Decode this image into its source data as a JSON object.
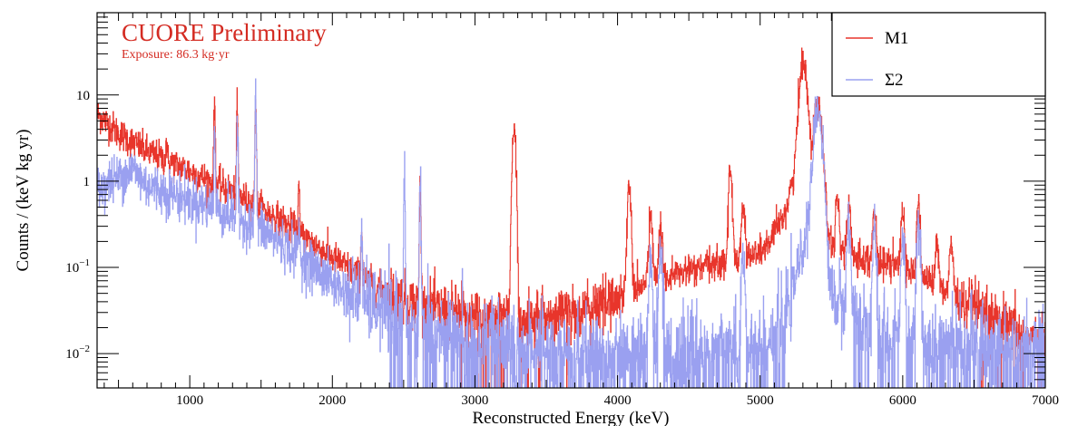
{
  "chart_data": {
    "type": "line",
    "title": "CUORE Preliminary",
    "subtitle": "Exposure: 86.3 kg·yr",
    "xlabel": "Reconstructed Energy (keV)",
    "ylabel": "Counts / (keV kg yr)",
    "xlim": [
      350,
      7000
    ],
    "ylim": [
      0.004,
      90
    ],
    "yscale": "log",
    "grid": false,
    "legend_position": "top-right",
    "x_ticks": [
      {
        "value": 1000,
        "label": "1000"
      },
      {
        "value": 2000,
        "label": "2000"
      },
      {
        "value": 3000,
        "label": "3000"
      },
      {
        "value": 4000,
        "label": "4000"
      },
      {
        "value": 5000,
        "label": "5000"
      },
      {
        "value": 6000,
        "label": "6000"
      },
      {
        "value": 7000,
        "label": "7000"
      }
    ],
    "y_ticks": [
      {
        "value": 0.01,
        "base": "10",
        "exp": "−2"
      },
      {
        "value": 0.1,
        "base": "10",
        "exp": "−1"
      },
      {
        "value": 1,
        "base": "1",
        "exp": ""
      },
      {
        "value": 10,
        "base": "10",
        "exp": ""
      }
    ],
    "series": [
      {
        "name": "M1",
        "color": "#e8352b",
        "continuum": [
          [
            350,
            6
          ],
          [
            500,
            3.6
          ],
          [
            700,
            2.2
          ],
          [
            1000,
            1.3
          ],
          [
            1300,
            0.75
          ],
          [
            1500,
            0.48
          ],
          [
            1700,
            0.3
          ],
          [
            2000,
            0.13
          ],
          [
            2300,
            0.06
          ],
          [
            2600,
            0.036
          ],
          [
            3000,
            0.028
          ],
          [
            3400,
            0.026
          ],
          [
            3800,
            0.032
          ],
          [
            4000,
            0.045
          ],
          [
            4300,
            0.075
          ],
          [
            4600,
            0.1
          ],
          [
            4800,
            0.12
          ],
          [
            5000,
            0.14
          ],
          [
            5200,
            0.2
          ],
          [
            5300,
            0.45
          ],
          [
            5400,
            0.5
          ],
          [
            5500,
            0.2
          ],
          [
            5600,
            0.15
          ],
          [
            5800,
            0.12
          ],
          [
            6000,
            0.1
          ],
          [
            6200,
            0.07
          ],
          [
            6400,
            0.04
          ],
          [
            6600,
            0.025
          ],
          [
            6800,
            0.018
          ],
          [
            7000,
            0.012
          ]
        ],
        "peaks": [
          [
            835,
            1.3
          ],
          [
            1173,
            7
          ],
          [
            1332,
            6
          ],
          [
            1461,
            8
          ],
          [
            1764,
            0.6
          ],
          [
            2204,
            0.2
          ],
          [
            2615,
            0.9
          ],
          [
            3273,
            4.2
          ],
          [
            4080,
            0.9
          ],
          [
            4230,
            0.35
          ],
          [
            4300,
            0.2
          ],
          [
            4790,
            1.2
          ],
          [
            4880,
            0.45
          ],
          [
            5304,
            23
          ],
          [
            5407,
            7.5
          ],
          [
            5540,
            0.4
          ],
          [
            5620,
            0.35
          ],
          [
            5800,
            0.3
          ],
          [
            6000,
            0.35
          ],
          [
            6110,
            0.4
          ],
          [
            6240,
            0.12
          ],
          [
            6340,
            0.15
          ]
        ]
      },
      {
        "name": "Σ2",
        "color": "#9aa0f0",
        "continuum": [
          [
            350,
            0.8
          ],
          [
            500,
            1.1
          ],
          [
            600,
            1.4
          ],
          [
            700,
            0.9
          ],
          [
            1000,
            0.6
          ],
          [
            1300,
            0.4
          ],
          [
            1500,
            0.28
          ],
          [
            1700,
            0.16
          ],
          [
            1900,
            0.09
          ],
          [
            2100,
            0.05
          ],
          [
            2300,
            0.035
          ],
          [
            2600,
            0.022
          ],
          [
            3000,
            0.014
          ],
          [
            4000,
            0.011
          ],
          [
            4800,
            0.011
          ],
          [
            5000,
            0.012
          ],
          [
            5200,
            0.02
          ],
          [
            5300,
            0.06
          ],
          [
            5400,
            0.3
          ],
          [
            5500,
            0.05
          ],
          [
            5700,
            0.02
          ],
          [
            6000,
            0.015
          ],
          [
            7000,
            0.012
          ]
        ],
        "peaks": [
          [
            1173,
            3
          ],
          [
            1332,
            3.5
          ],
          [
            1461,
            9
          ],
          [
            1764,
            0.2
          ],
          [
            2204,
            0.25
          ],
          [
            2505,
            0.9
          ],
          [
            2615,
            0.95
          ],
          [
            4230,
            0.12
          ],
          [
            4300,
            0.15
          ],
          [
            4880,
            0.14
          ],
          [
            5407,
            6.5
          ],
          [
            5620,
            0.3
          ],
          [
            5800,
            0.28
          ],
          [
            6000,
            0.2
          ],
          [
            6110,
            0.3
          ]
        ]
      }
    ]
  }
}
